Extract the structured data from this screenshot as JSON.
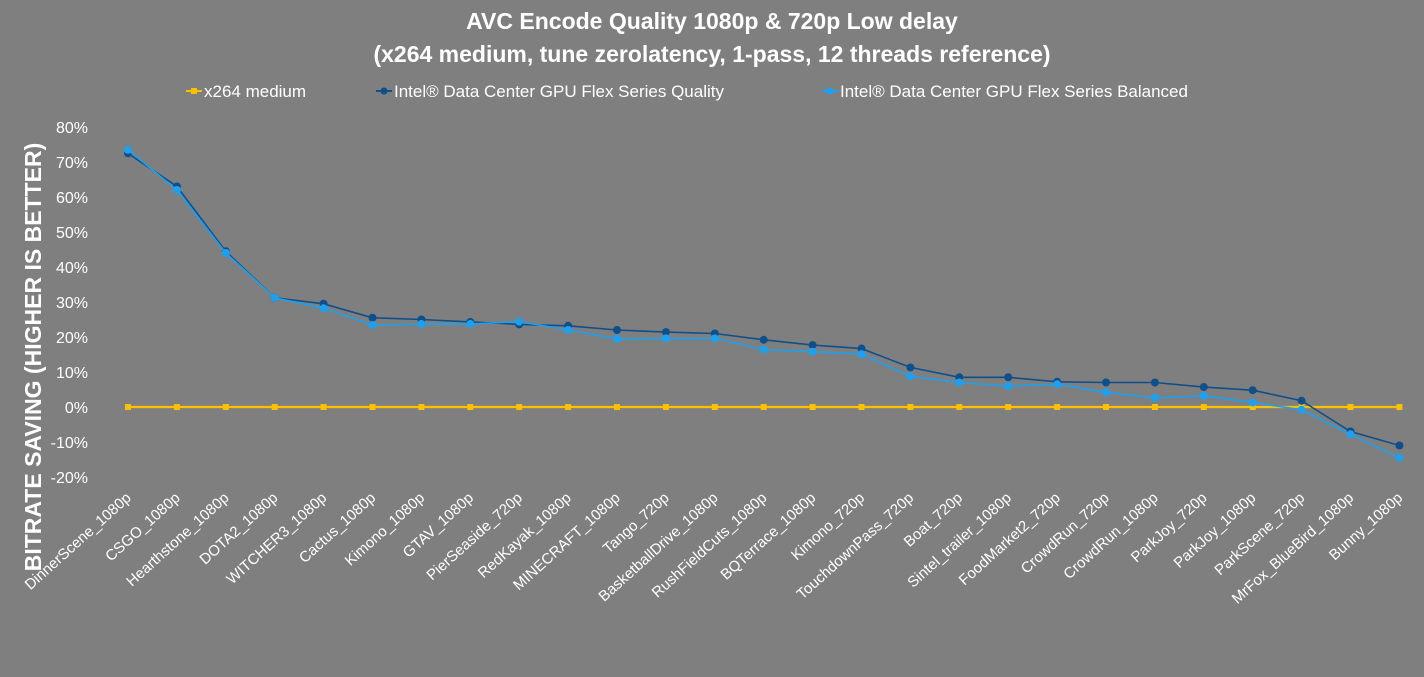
{
  "chart_data": {
    "type": "line",
    "title": "AVC Encode Quality 1080p & 720p Low delay",
    "subtitle": "(x264 medium, tune zerolatency, 1-pass, 12 threads reference)",
    "ylabel": "BITRATE SAVING (HIGHER IS BETTER)",
    "xlabel": "",
    "ylim": [
      -20,
      80
    ],
    "yticks": [
      "80%",
      "70%",
      "60%",
      "50%",
      "40%",
      "30%",
      "20%",
      "10%",
      "0%",
      "-10%",
      "-20%"
    ],
    "grid": false,
    "legend_position": "top",
    "categories": [
      "DinnerScene_1080p",
      "CSGO_1080p",
      "Hearthstone_1080p",
      "DOTA2_1080p",
      "WITCHER3_1080p",
      "Cactus_1080p",
      "Kimono_1080p",
      "GTAV_1080p",
      "PierSeaside_720p",
      "RedKayak_1080p",
      "MINECRAFT_1080p",
      "Tango_720p",
      "BasketballDrive_1080p",
      "RushFieldCuts_1080p",
      "BQTerrace_1080p",
      "Kimono_720p",
      "TouchdownPass_720p",
      "Boat_720p",
      "Sintel_trailer_1080p",
      "FoodMarket2_720p",
      "CrowdRun_720p",
      "CrowdRun_1080p",
      "ParkJoy_720p",
      "ParkJoy_1080p",
      "ParkScene_720p",
      "MrFox_BlueBird_1080p",
      "Bunny_1080p"
    ],
    "series": [
      {
        "name": "x264 medium",
        "color": "#ffc000",
        "marker": "square",
        "values": [
          0,
          0,
          0,
          0,
          0,
          0,
          0,
          0,
          0,
          0,
          0,
          0,
          0,
          0,
          0,
          0,
          0,
          0,
          0,
          0,
          0,
          0,
          0,
          0,
          0,
          0,
          0
        ]
      },
      {
        "name": "Intel® Data Center GPU Flex Series Quality",
        "color": "#0f4f8a",
        "marker": "circle",
        "values": [
          72.5,
          63,
          44.5,
          31.2,
          29.5,
          25.5,
          25,
          24.3,
          23.6,
          23.2,
          22,
          21.4,
          21,
          19.2,
          17.7,
          16.7,
          11.3,
          8.5,
          8.5,
          7.2,
          7,
          7,
          5.7,
          4.8,
          1.8,
          -7,
          -11
        ]
      },
      {
        "name": "Intel® Data Center GPU Flex Series Balanced",
        "color": "#1ea0f0",
        "marker": "circle",
        "values": [
          73.5,
          62,
          44,
          31.2,
          28.2,
          23.4,
          23.7,
          23.7,
          24.4,
          22,
          19.5,
          19.6,
          19.6,
          16.4,
          15.8,
          15.1,
          8.8,
          7,
          6,
          6.5,
          4.2,
          2.6,
          3.2,
          1.3,
          -0.8,
          -7.8,
          -14.5
        ]
      }
    ]
  }
}
